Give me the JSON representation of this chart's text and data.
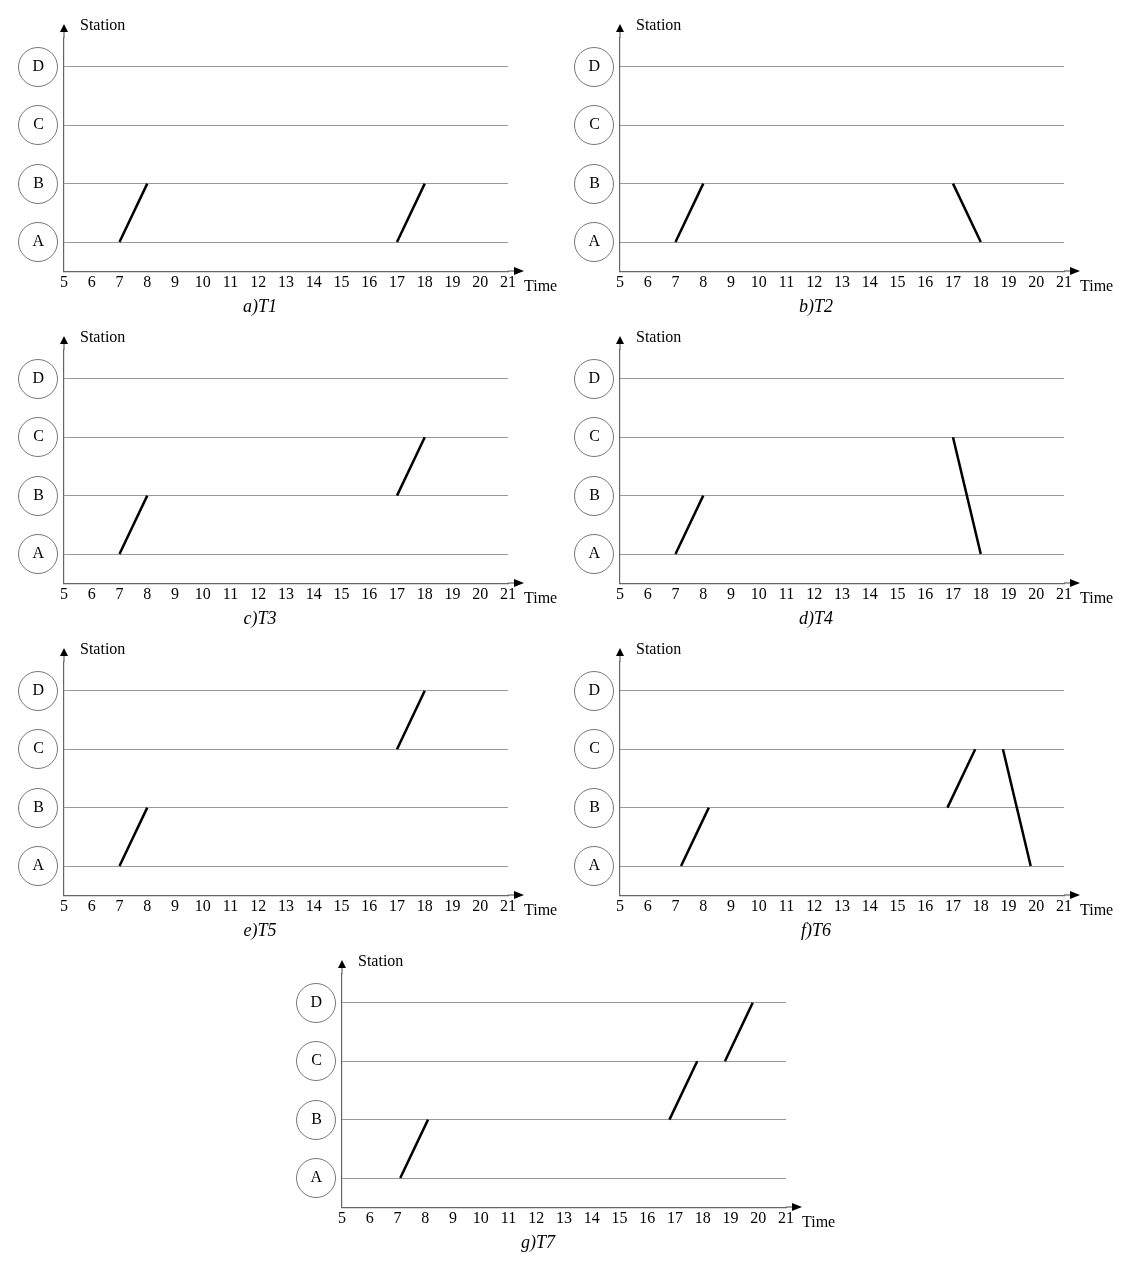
{
  "chart_data": [
    {
      "type": "line",
      "orientation": "horizontal",
      "title": "a)T1",
      "xlabel": "Time",
      "ylabel": "Station",
      "categories": [
        "D",
        "C",
        "B",
        "A"
      ],
      "xlim": [
        5,
        21
      ],
      "xticks": [
        5,
        6,
        7,
        8,
        9,
        10,
        11,
        12,
        13,
        14,
        15,
        16,
        17,
        18,
        19,
        20,
        21
      ],
      "grid": "y",
      "legend": false,
      "marker": "none",
      "series": [
        {
          "color": "#000000",
          "values": [
            null,
            null,
            8,
            7
          ]
        },
        {
          "color": "#000000",
          "values": [
            null,
            null,
            18,
            17
          ]
        }
      ]
    },
    {
      "type": "line",
      "orientation": "horizontal",
      "title": "b)T2",
      "xlabel": "Time",
      "ylabel": "Station",
      "categories": [
        "D",
        "C",
        "B",
        "A"
      ],
      "xlim": [
        5,
        21
      ],
      "xticks": [
        5,
        6,
        7,
        8,
        9,
        10,
        11,
        12,
        13,
        14,
        15,
        16,
        17,
        18,
        19,
        20,
        21
      ],
      "grid": "y",
      "legend": false,
      "marker": "none",
      "series": [
        {
          "color": "#000000",
          "values": [
            null,
            null,
            8,
            7
          ]
        },
        {
          "color": "#000000",
          "values": [
            null,
            null,
            17,
            18
          ]
        }
      ]
    },
    {
      "type": "line",
      "orientation": "horizontal",
      "title": "c)T3",
      "xlabel": "Time",
      "ylabel": "Station",
      "categories": [
        "D",
        "C",
        "B",
        "A"
      ],
      "xlim": [
        5,
        21
      ],
      "xticks": [
        5,
        6,
        7,
        8,
        9,
        10,
        11,
        12,
        13,
        14,
        15,
        16,
        17,
        18,
        19,
        20,
        21
      ],
      "grid": "y",
      "legend": false,
      "marker": "none",
      "series": [
        {
          "color": "#000000",
          "values": [
            null,
            null,
            8,
            7
          ]
        },
        {
          "color": "#000000",
          "values": [
            null,
            18,
            17,
            null
          ]
        }
      ]
    },
    {
      "type": "line",
      "orientation": "horizontal",
      "title": "d)T4",
      "xlabel": "Time",
      "ylabel": "Station",
      "categories": [
        "D",
        "C",
        "B",
        "A"
      ],
      "xlim": [
        5,
        21
      ],
      "xticks": [
        5,
        6,
        7,
        8,
        9,
        10,
        11,
        12,
        13,
        14,
        15,
        16,
        17,
        18,
        19,
        20,
        21
      ],
      "grid": "y",
      "legend": false,
      "marker": "none",
      "series": [
        {
          "color": "#000000",
          "values": [
            null,
            null,
            8,
            7
          ]
        },
        {
          "color": "#000000",
          "values": [
            null,
            17,
            17.5,
            18
          ]
        }
      ]
    },
    {
      "type": "line",
      "orientation": "horizontal",
      "title": "e)T5",
      "xlabel": "Time",
      "ylabel": "Station",
      "categories": [
        "D",
        "C",
        "B",
        "A"
      ],
      "xlim": [
        5,
        21
      ],
      "xticks": [
        5,
        6,
        7,
        8,
        9,
        10,
        11,
        12,
        13,
        14,
        15,
        16,
        17,
        18,
        19,
        20,
        21
      ],
      "grid": "y",
      "legend": false,
      "marker": "none",
      "series": [
        {
          "color": "#000000",
          "values": [
            null,
            null,
            8,
            7
          ]
        },
        {
          "color": "#000000",
          "values": [
            18,
            17,
            null,
            null
          ]
        }
      ]
    },
    {
      "type": "line",
      "orientation": "horizontal",
      "title": "f)T6",
      "xlabel": "Time",
      "ylabel": "Station",
      "categories": [
        "D",
        "C",
        "B",
        "A"
      ],
      "xlim": [
        5,
        21
      ],
      "xticks": [
        5,
        6,
        7,
        8,
        9,
        10,
        11,
        12,
        13,
        14,
        15,
        16,
        17,
        18,
        19,
        20,
        21
      ],
      "grid": "y",
      "legend": false,
      "marker": "none",
      "series": [
        {
          "color": "#000000",
          "values": [
            null,
            null,
            8.2,
            7.2
          ]
        },
        {
          "color": "#000000",
          "values": [
            null,
            17.8,
            16.8,
            null
          ]
        },
        {
          "color": "#000000",
          "values": [
            null,
            18.8,
            19.3,
            19.8
          ]
        }
      ]
    },
    {
      "type": "line",
      "orientation": "horizontal",
      "title": "g)T7",
      "xlabel": "Time",
      "ylabel": "Station",
      "categories": [
        "D",
        "C",
        "B",
        "A"
      ],
      "xlim": [
        5,
        21
      ],
      "xticks": [
        5,
        6,
        7,
        8,
        9,
        10,
        11,
        12,
        13,
        14,
        15,
        16,
        17,
        18,
        19,
        20,
        21
      ],
      "grid": "y",
      "legend": false,
      "marker": "none",
      "series": [
        {
          "color": "#000000",
          "values": [
            null,
            null,
            8.1,
            7.1
          ]
        },
        {
          "color": "#000000",
          "values": [
            null,
            17.8,
            16.8,
            null
          ]
        },
        {
          "color": "#000000",
          "values": [
            19.8,
            18.8,
            null,
            null
          ]
        }
      ]
    }
  ]
}
